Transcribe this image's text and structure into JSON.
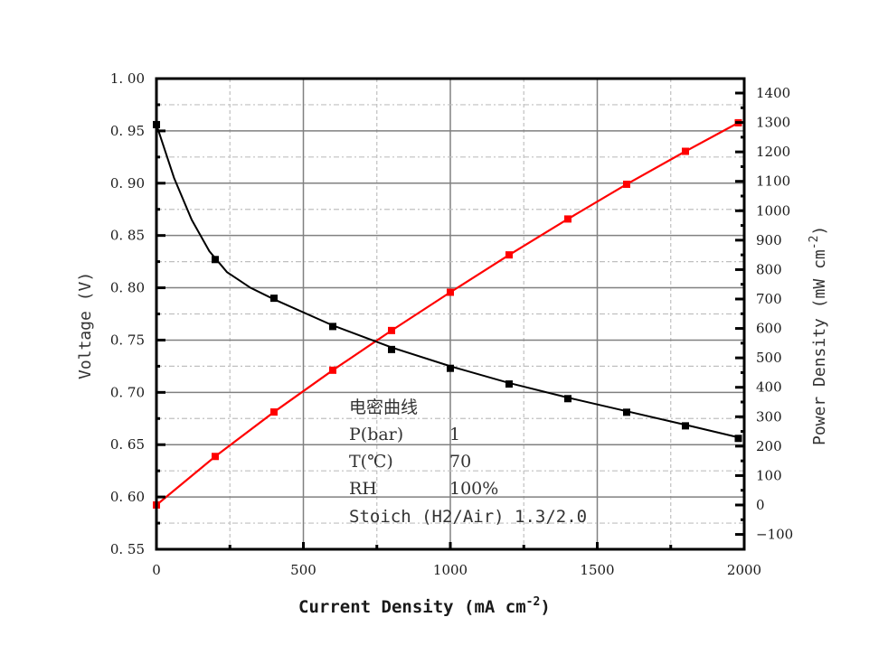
{
  "chart_data": {
    "type": "line",
    "title": "",
    "xlabel": "Current Density (mA cm^-2)",
    "ylabel": "Voltage (V)",
    "y2label": "Power Density (mW cm^-2)",
    "xlim": [
      0,
      2000
    ],
    "ylim": [
      0.55,
      1.0
    ],
    "y2lim": [
      -140,
      1460
    ],
    "grid": true,
    "x_ticks": [
      "0",
      "500",
      "1000",
      "1500",
      "2000"
    ],
    "y_ticks": [
      "0.55",
      "0.60",
      "0.65",
      "0.70",
      "0.75",
      "0.80",
      "0.85",
      "0.90",
      "0.95",
      "1.00"
    ],
    "y2_ticks": [
      "-100",
      "0",
      "100",
      "200",
      "300",
      "400",
      "500",
      "600",
      "700",
      "800",
      "900",
      "1000",
      "1100",
      "1200",
      "1300",
      "1400"
    ],
    "x": [
      0,
      200,
      400,
      600,
      800,
      1000,
      1200,
      1400,
      1600,
      1800,
      1980
    ],
    "series": [
      {
        "name": "Voltage",
        "axis": "left",
        "color": "#000000",
        "marker": "square",
        "values": [
          0.956,
          0.827,
          0.79,
          0.763,
          0.741,
          0.723,
          0.708,
          0.694,
          0.681,
          0.668,
          0.656
        ]
      },
      {
        "name": "Power Density",
        "axis": "right",
        "color": "#ff0000",
        "marker": "square",
        "values": [
          0,
          165,
          316,
          458,
          593,
          723,
          850,
          972,
          1090,
          1202,
          1299
        ]
      }
    ],
    "annotation": {
      "title": "电密曲线",
      "rows": [
        {
          "label": "P(bar)",
          "value": "1"
        },
        {
          "label": "T(℃)",
          "value": "70"
        },
        {
          "label": "RH",
          "value": "100%"
        },
        {
          "label": "Stoich (H2/Air)",
          "value": "1.3/2.0"
        }
      ]
    }
  },
  "labels": {
    "xlabel_main": "Current Density (mA cm",
    "xlabel_sup": "-2",
    "xlabel_end": ")",
    "ylabel": "Voltage (V)",
    "y2label_main": "Power Density (mW cm",
    "y2label_sup": "-2",
    "y2label_end": ")"
  },
  "colors": {
    "voltage": "#000000",
    "power": "#ff0000",
    "grid_major": "#808080",
    "grid_minor": "#c0c0c0"
  }
}
